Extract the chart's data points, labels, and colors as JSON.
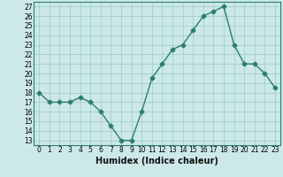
{
  "x": [
    0,
    1,
    2,
    3,
    4,
    5,
    6,
    7,
    8,
    9,
    10,
    11,
    12,
    13,
    14,
    15,
    16,
    17,
    18,
    19,
    20,
    21,
    22,
    23
  ],
  "y": [
    18,
    17,
    17,
    17,
    17.5,
    17,
    16,
    14.5,
    13,
    13,
    16,
    19.5,
    21,
    22.5,
    23,
    24.5,
    26,
    26.5,
    27,
    23,
    21,
    21,
    20,
    18.5
  ],
  "xlabel": "Humidex (Indice chaleur)",
  "xlim": [
    -0.5,
    23.5
  ],
  "ylim": [
    12.5,
    27.5
  ],
  "yticks": [
    13,
    14,
    15,
    16,
    17,
    18,
    19,
    20,
    21,
    22,
    23,
    24,
    25,
    26,
    27
  ],
  "xticks": [
    0,
    1,
    2,
    3,
    4,
    5,
    6,
    7,
    8,
    9,
    10,
    11,
    12,
    13,
    14,
    15,
    16,
    17,
    18,
    19,
    20,
    21,
    22,
    23
  ],
  "line_color": "#2e7d6e",
  "marker": "D",
  "marker_size": 2.5,
  "bg_color": "#cce8e8",
  "grid_color": "#99cccc",
  "line_width": 1.0,
  "tick_fontsize": 5.5,
  "xlabel_fontsize": 7.0
}
